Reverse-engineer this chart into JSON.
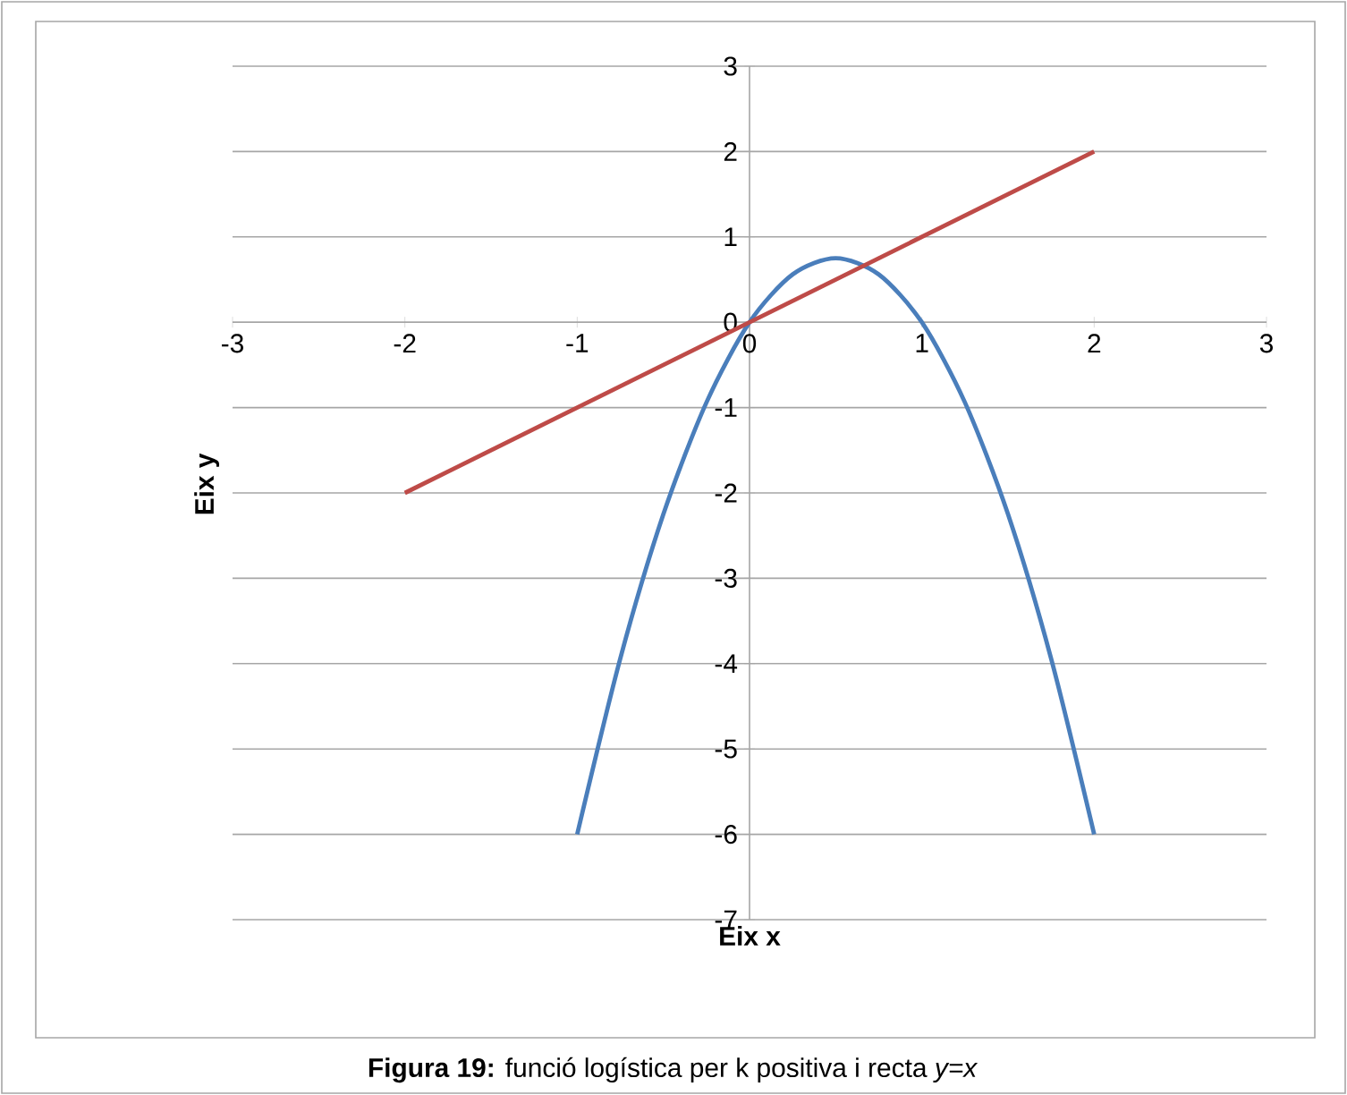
{
  "chart_data": {
    "type": "line",
    "xlabel": "Eix x",
    "ylabel": "Eix y",
    "annotations": [
      "**Figura 19:** funció logística per k positiva i recta *y=x*"
    ],
    "series": [
      {
        "color": "#4a7ebb",
        "x": [
          -1,
          -0.75,
          -0.5,
          -0.25,
          0,
          0.25,
          0.5,
          0.75,
          1,
          1.25,
          1.5,
          1.75,
          2
        ],
        "values": [
          -6,
          -3.94,
          -2.25,
          -0.94,
          0,
          0.56,
          0.75,
          0.56,
          0,
          -0.94,
          -2.25,
          -3.94,
          -6
        ]
      },
      {
        "color": "#be4b48",
        "x": [
          -2,
          2
        ],
        "values": [
          -2,
          2
        ]
      }
    ],
    "xlim": [
      -3,
      3
    ],
    "ylim": [
      -7,
      3
    ],
    "xticks": [
      -3,
      -2,
      -1,
      0,
      1,
      2,
      3
    ],
    "yticks": [
      -7,
      -6,
      -5,
      -4,
      -3,
      -2,
      -1,
      0,
      1,
      2,
      3
    ],
    "grid": "y"
  }
}
